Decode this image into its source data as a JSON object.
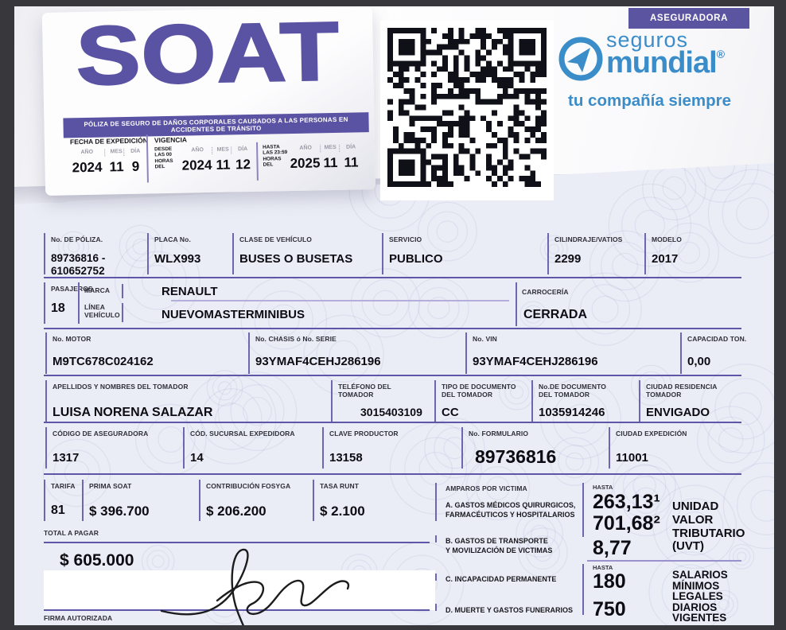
{
  "header": {
    "soat_title": "SOAT",
    "soat_subtitle": "PÓLIZA DE SEGURO DE DAÑOS CORPORALES CAUSADOS A LAS PERSONAS EN ACCIDENTES DE TRÁNSITO",
    "badge": "ASEGURADORA",
    "brand": {
      "top": "seguros",
      "name": "mundial",
      "reg": "®",
      "tagline": "tu compañía siempre"
    },
    "expedition": {
      "title": "FECHA DE EXPEDICIÓN",
      "year_label": "AÑO",
      "month_label": "MES",
      "day_label": "DÍA",
      "year": "2024",
      "month": "11",
      "day": "9"
    },
    "vigencia": {
      "title": "VIGENCIA",
      "desde_prefix": "DESDE\nLAS 00\nHORAS\nDEL",
      "desde_year": "2024",
      "desde_month": "11",
      "desde_day": "12",
      "hasta_prefix": "HASTA\nLAS 23:59\nHORAS\nDEL",
      "hasta_year": "2025",
      "hasta_month": "11",
      "hasta_day": "11",
      "year_label": "AÑO",
      "month_label": "MES",
      "day_label": "DÍA"
    }
  },
  "fields": {
    "poliza": {
      "label": "No. DE PÓLIZA.",
      "value": "89736816 -\n610652752"
    },
    "placa": {
      "label": "PLACA No.",
      "value": "WLX993"
    },
    "clase": {
      "label": "CLASE DE VEHÍCULO",
      "value": "BUSES O BUSETAS"
    },
    "servicio": {
      "label": "SERVICIO",
      "value": "PUBLICO"
    },
    "cilindraje": {
      "label": "CILINDRAJE/VATIOS",
      "value": "2299"
    },
    "modelo": {
      "label": "MODELO",
      "value": "2017"
    },
    "pasajeros": {
      "label": "PASAJEROS",
      "value": "18"
    },
    "marca": {
      "label": "MARCA",
      "value": "RENAULT"
    },
    "linea": {
      "label": "LÍNEA\nVEHÍCULO",
      "value": "NUEVOMASTERMINIBUS"
    },
    "carroceria": {
      "label": "CARROCERÍA",
      "value": "CERRADA"
    },
    "motor": {
      "label": "No. MOTOR",
      "value": "M9TC678C024162"
    },
    "chasis": {
      "label": "No. CHASIS ó No. SERIE",
      "value": "93YMAF4CEHJ286196"
    },
    "vin": {
      "label": "No. VIN",
      "value": "93YMAF4CEHJ286196"
    },
    "capacidad": {
      "label": "CAPACIDAD TON.",
      "value": "0,00"
    },
    "tomador": {
      "label": "APELLIDOS Y NOMBRES DEL TOMADOR",
      "value": "LUISA NORENA SALAZAR"
    },
    "telefono": {
      "label": "TELÉFONO DEL TOMADOR",
      "value": "3015403109"
    },
    "tipo_doc": {
      "label": "TIPO DE DOCUMENTO\nDEL TOMADOR",
      "value": "CC"
    },
    "num_doc": {
      "label": "No.DE DOCUMENTO\nDEL TOMADOR",
      "value": "1035914246"
    },
    "ciudad_res": {
      "label": "CIUDAD RESIDENCIA TOMADOR",
      "value": "ENVIGADO"
    },
    "cod_aseguradora": {
      "label": "CÓDIGO DE ASEGURADORA",
      "value": "1317"
    },
    "cod_sucursal": {
      "label": "CÓD. SUCURSAL EXPEDIDORA",
      "value": "14"
    },
    "clave_productor": {
      "label": "CLAVE PRODUCTOR",
      "value": "13158"
    },
    "formulario": {
      "label": "No. FORMULARIO",
      "value": "89736816"
    },
    "ciudad_exp": {
      "label": "CIUDAD EXPEDICIÓN",
      "value": "11001"
    },
    "tarifa": {
      "label": "TARIFA",
      "value": "81"
    },
    "prima": {
      "label": "PRIMA SOAT",
      "value": "$ 396.700"
    },
    "fosyga": {
      "label": "CONTRIBUCIÓN FOSYGA",
      "value": "$ 206.200"
    },
    "runt": {
      "label": "TASA RUNT",
      "value": "$ 2.100"
    }
  },
  "payment": {
    "total_label": "TOTAL A PAGAR",
    "total_value": "$ 605.000",
    "firma_label": "FIRMA AUTORIZADA"
  },
  "amparos": {
    "title": "AMPAROS POR VICTIMA",
    "hasta_label": "HASTA",
    "hasta_label2": "HASTA",
    "item_a_label": "A. GASTOS MÉDICOS QUIRURGICOS,\nFARMACÉUTICOS Y HOSPITALARIOS",
    "item_a_value1": "263,13¹",
    "item_a_value2": "701,68²",
    "item_b_label": "B. GASTOS DE TRANSPORTE\nY MOVILIZACIÓN DE VICTIMAS",
    "item_b_value": "8,77",
    "item_c_label": "C. INCAPACIDAD PERMANENTE",
    "item_c_value": "180",
    "item_d_label": "D. MUERTE Y GASTOS FUNERARIOS",
    "item_d_value": "750",
    "unit_uvt": "UNIDAD\nVALOR\nTRIBUTARIO\n(UVT)",
    "unit_smldv": "SALARIOS\nMÍNIMOS\nLEGALES\nDIARIOS\nVIGENTES"
  },
  "colors": {
    "purple": "#5a52a2",
    "blue": "#3a8dc8"
  }
}
